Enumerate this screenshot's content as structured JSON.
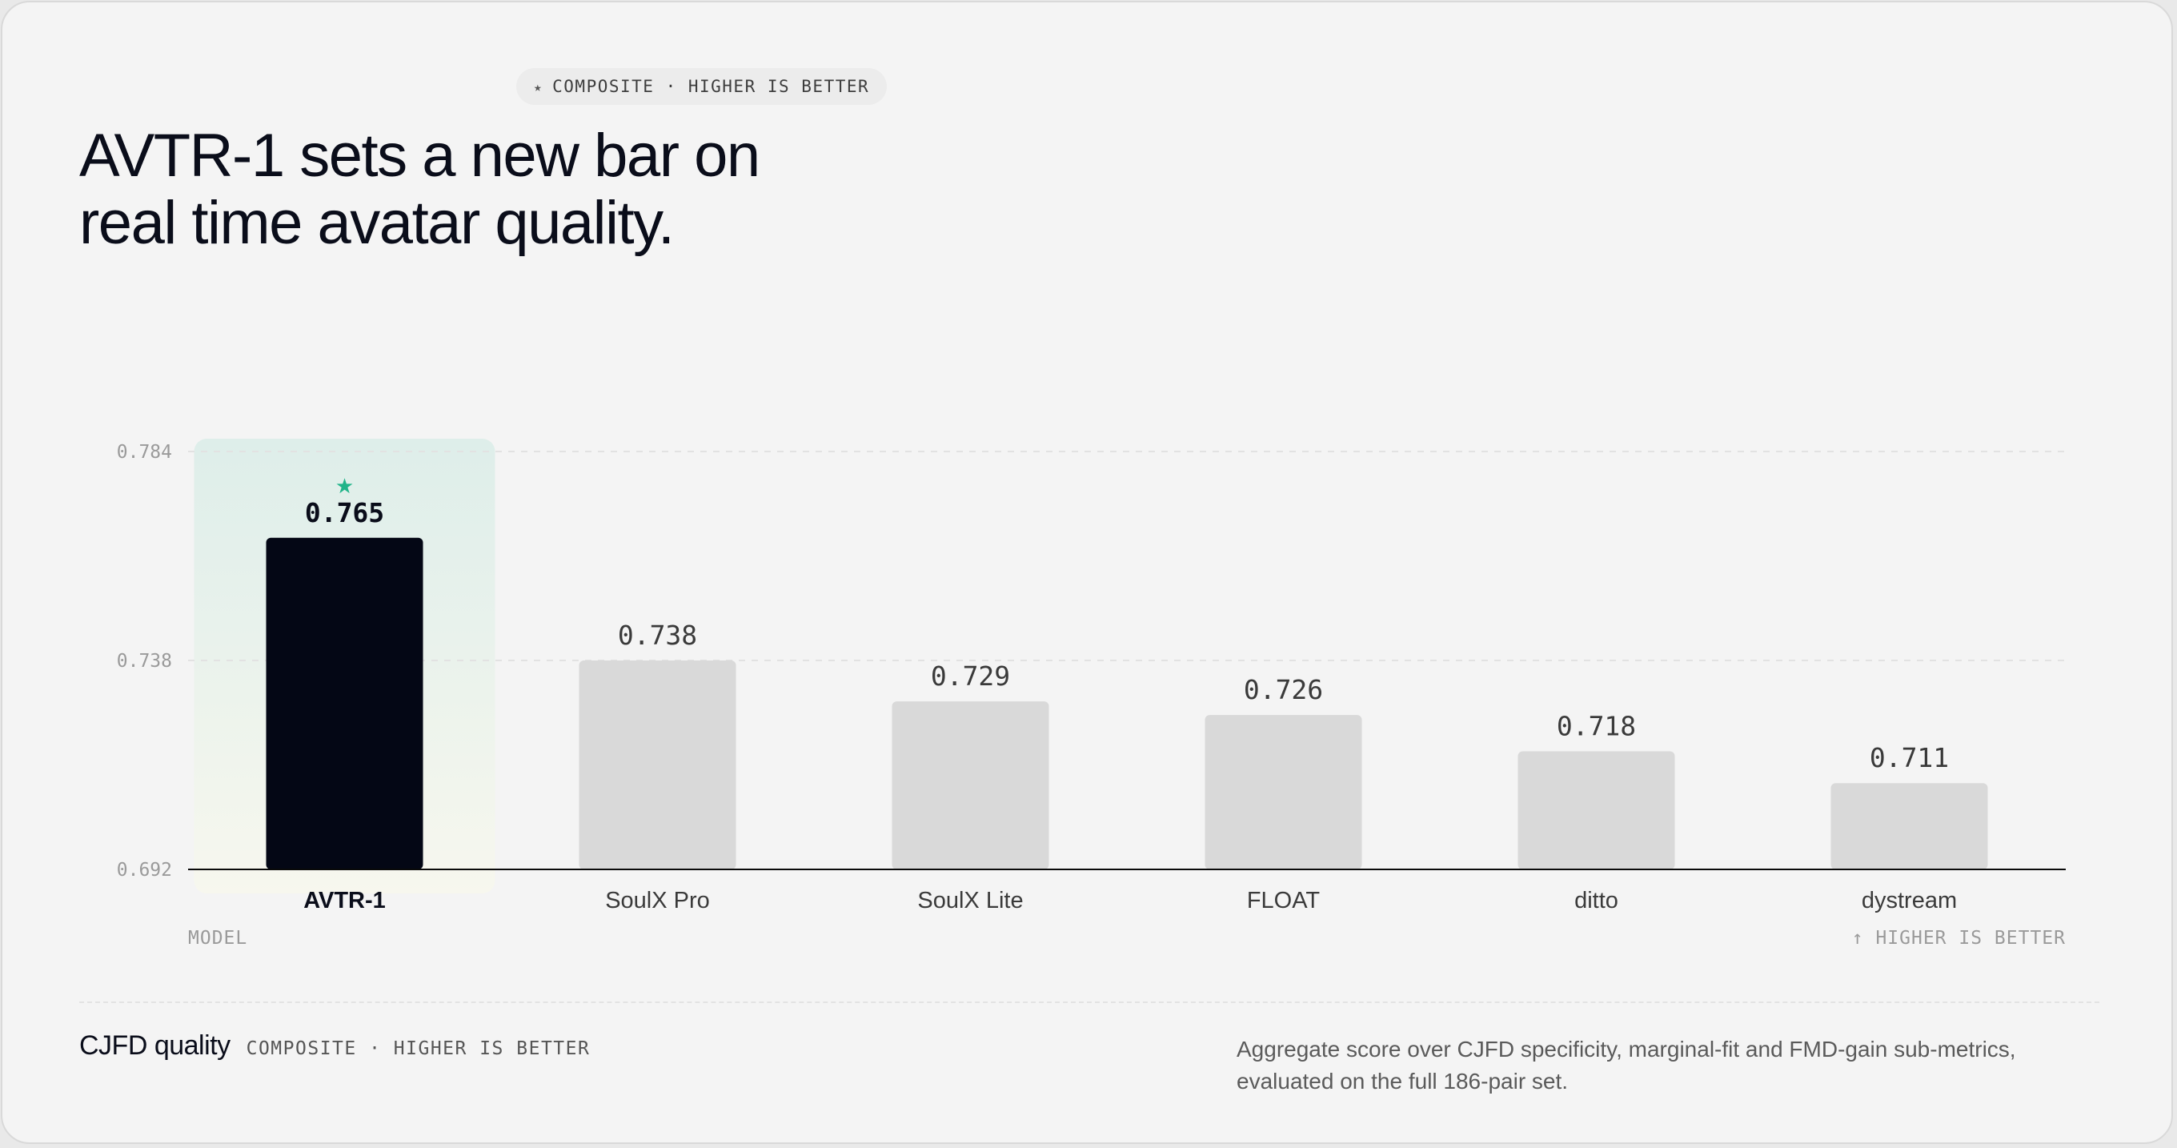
{
  "header": {
    "tag_icon": "★",
    "tag_label": "COMPOSITE · HIGHER IS BETTER",
    "headline_line1": "AVTR-1 sets a new bar on",
    "headline_line2": "real time avatar quality."
  },
  "chart_data": {
    "type": "bar",
    "categories": [
      "AVTR-1",
      "SoulX Pro",
      "SoulX Lite",
      "FLOAT",
      "ditto",
      "dystream"
    ],
    "values": [
      0.765,
      0.738,
      0.729,
      0.726,
      0.718,
      0.711
    ],
    "value_labels": [
      "0.765",
      "0.738",
      "0.729",
      "0.726",
      "0.718",
      "0.711"
    ],
    "ylim": [
      0.692,
      0.784
    ],
    "yticks": [
      "0.784",
      "0.738",
      "0.692"
    ],
    "xlabel": "MODEL",
    "direction_note": "↑ HIGHER IS BETTER",
    "highlight_index": 0,
    "highlight_marker": "★",
    "grid": true,
    "colors": {
      "highlight_bar": "#040715",
      "bar": "#d9d9d9",
      "highlight_panel_top": "#deeeea",
      "highlight_panel_bottom": "#f7f7ee",
      "star": "#1fb489",
      "baseline": "#0a0a0a",
      "grid": "#e2e2e2"
    }
  },
  "footer": {
    "metric": "CJFD quality",
    "metric_sub": "COMPOSITE · HIGHER IS BETTER",
    "description": "Aggregate score over CJFD specificity, marginal-fit and FMD-gain sub-metrics, evaluated on the full 186-pair set."
  }
}
